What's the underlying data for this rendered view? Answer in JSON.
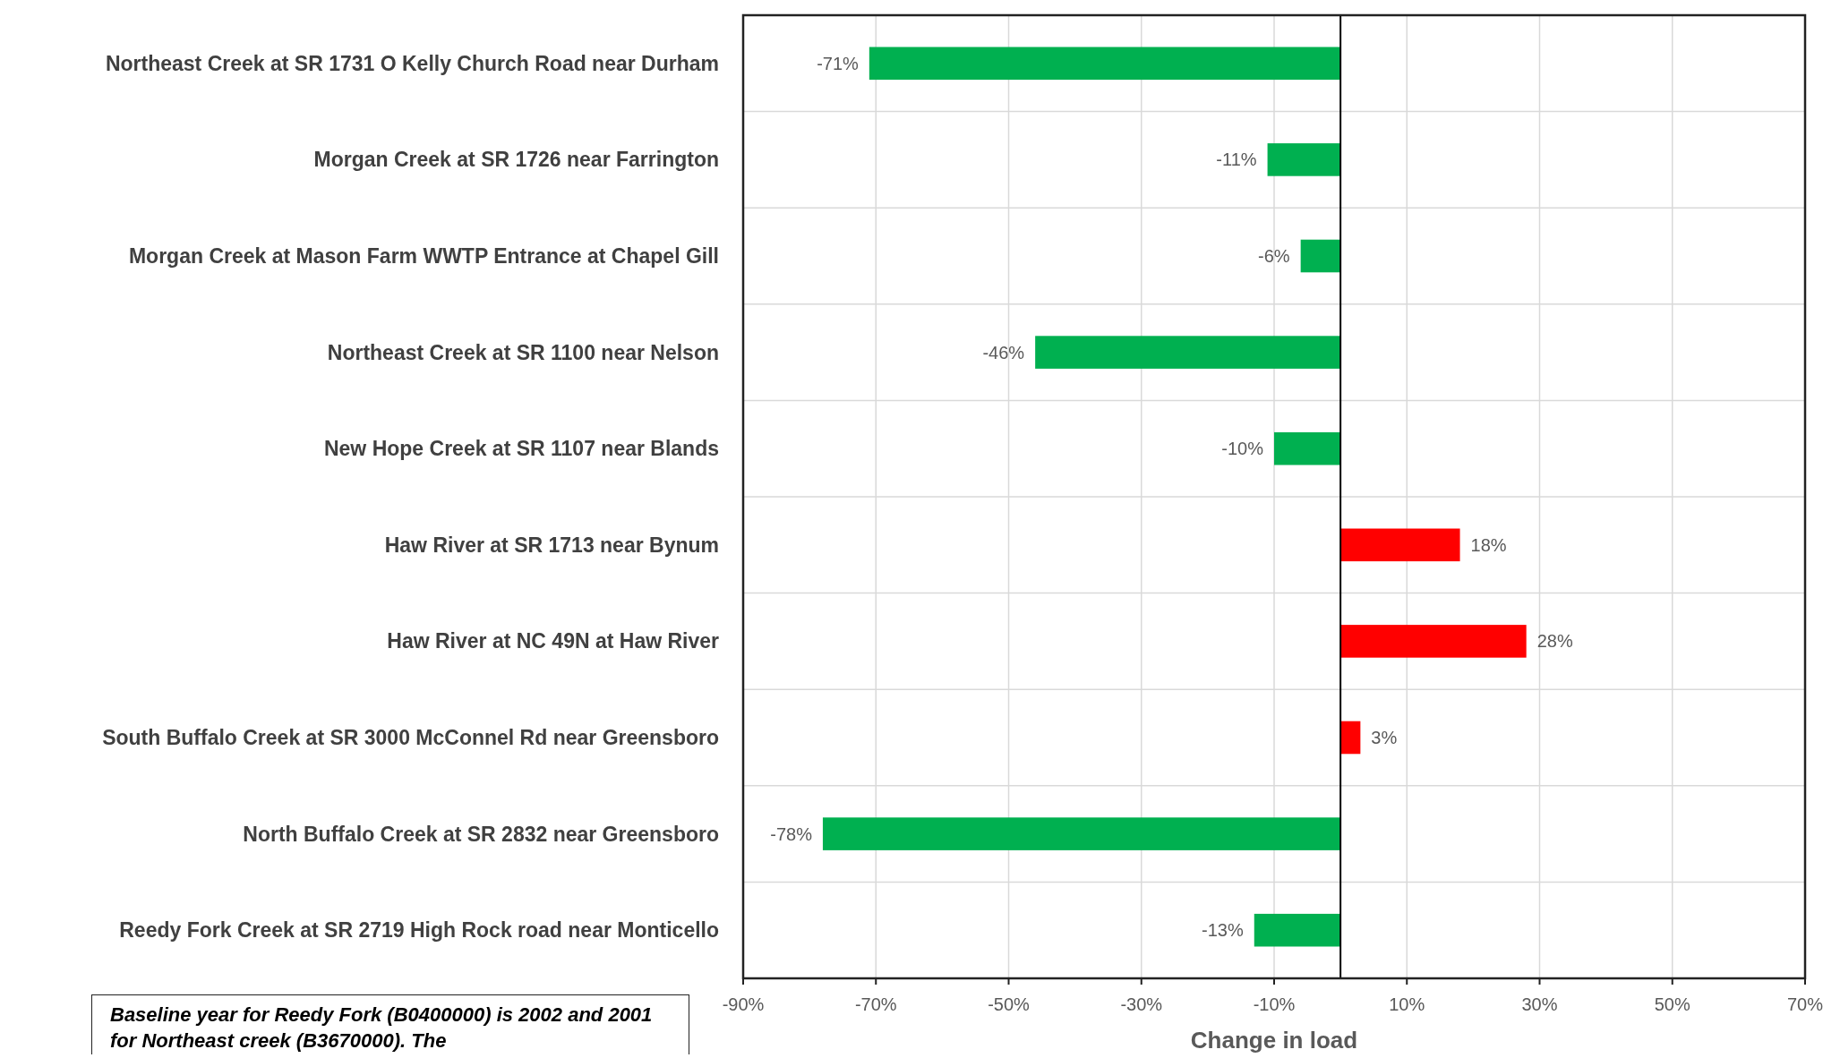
{
  "chart_data": {
    "type": "bar",
    "orientation": "horizontal",
    "xlabel": "Change in load",
    "categories": [
      "Northeast Creek at SR 1731 O Kelly Church Road near Durham",
      "Morgan Creek at SR 1726 near Farrington",
      "Morgan Creek at Mason Farm WWTP Entrance at Chapel Gill",
      "Northeast Creek at SR 1100 near Nelson",
      "New Hope Creek at SR 1107 near Blands",
      "Haw River at SR 1713 near Bynum",
      "Haw River at NC 49N at Haw River",
      "South Buffalo Creek at SR 3000 McConnel Rd near Greensboro",
      "North Buffalo Creek at SR 2832 near Greensboro",
      "Reedy Fork Creek at SR 2719 High Rock road near Monticello"
    ],
    "values": [
      -71,
      -11,
      -6,
      -46,
      -10,
      18,
      28,
      3,
      -78,
      -13
    ],
    "colors": [
      "#00b050",
      "#00b050",
      "#00b050",
      "#00b050",
      "#00b050",
      "#ff0000",
      "#ff0000",
      "#ff0000",
      "#00b050",
      "#00b050"
    ],
    "value_labels": [
      "-71%",
      "-11%",
      "-6%",
      "-46%",
      "-10%",
      "18%",
      "28%",
      "3%",
      "-78%",
      "-13%"
    ],
    "xlim": [
      -90,
      70
    ],
    "xticks": [
      {
        "value": -90,
        "label": "-90%"
      },
      {
        "value": -70,
        "label": "-70%"
      },
      {
        "value": -50,
        "label": "-50%"
      },
      {
        "value": -30,
        "label": "-30%"
      },
      {
        "value": -10,
        "label": "-10%"
      },
      {
        "value": 10,
        "label": "10%"
      },
      {
        "value": 30,
        "label": "30%"
      },
      {
        "value": 50,
        "label": "50%"
      },
      {
        "value": 70,
        "label": "70%"
      }
    ],
    "grid": true,
    "annotations": [
      "Baseline year for Reedy Fork (B0400000) is 2002 and 2001 for Northeast creek (B3670000). The"
    ]
  }
}
